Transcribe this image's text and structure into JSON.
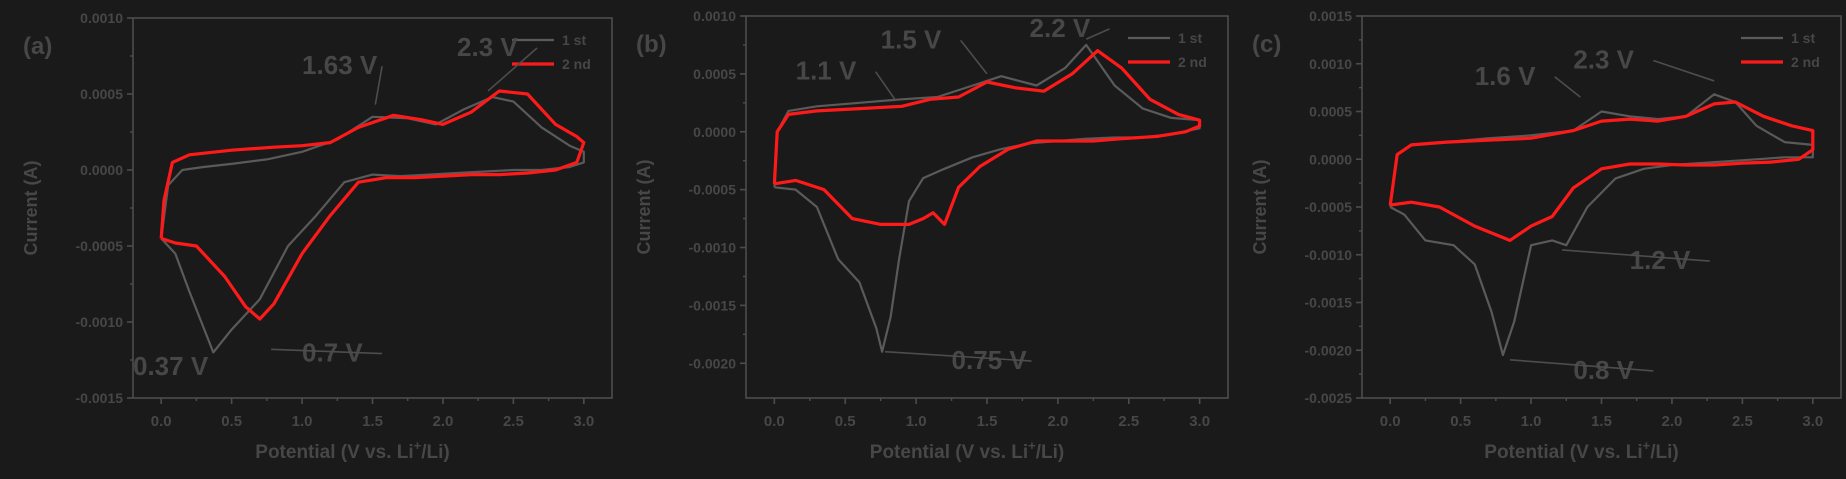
{
  "colors": {
    "background": "#1a1a1a",
    "axis": "#4d4d4d",
    "text": "#474747",
    "series_1st": "#5a5a5a",
    "series_2nd": "#ff1a1a"
  },
  "chart_data": [
    {
      "type": "line",
      "panel_label": "(a)",
      "xlabel_parts": [
        "Potential (V vs. Li",
        "+",
        "/Li)"
      ],
      "ylabel": "Current (A)",
      "xlim": [
        -0.2,
        3.2
      ],
      "ylim": [
        -0.0015,
        0.001
      ],
      "xticks": [
        0.0,
        0.5,
        1.0,
        1.5,
        2.0,
        2.5,
        3.0
      ],
      "xtick_labels": [
        "0.0",
        "0.5",
        "1.0",
        "1.5",
        "2.0",
        "2.5",
        "3.0"
      ],
      "yticks": [
        0.001,
        0.0005,
        0.0,
        -0.0005,
        -0.001,
        -0.0015
      ],
      "ytick_labels": [
        "0.0010",
        "0.0005",
        "0.0000",
        "-0.0005",
        "-0.0010",
        "-0.0015"
      ],
      "legend": [
        "1 st",
        "2 nd"
      ],
      "legend_position": "top-right",
      "series": [
        {
          "name": "1 st",
          "x": [
            0.0,
            0.1,
            0.2,
            0.37,
            0.5,
            0.7,
            0.9,
            1.1,
            1.3,
            1.5,
            1.7,
            1.9,
            2.1,
            2.3,
            2.5,
            2.7,
            2.9,
            3.0,
            3.0,
            2.9,
            2.7,
            2.5,
            2.35,
            2.15,
            1.95,
            1.75,
            1.5,
            1.25,
            1.0,
            0.75,
            0.5,
            0.3,
            0.15,
            0.05,
            0.0
          ],
          "y": [
            -0.00045,
            -0.00055,
            -0.0008,
            -0.0012,
            -0.00105,
            -0.00085,
            -0.0005,
            -0.0003,
            -8e-05,
            -3e-05,
            -4e-05,
            -3e-05,
            -2e-05,
            -1e-05,
            0.0,
            0.0,
            2e-05,
            5e-05,
            0.00012,
            0.00016,
            0.00028,
            0.00045,
            0.00048,
            0.0004,
            0.0003,
            0.00034,
            0.00035,
            0.0002,
            0.00012,
            7e-05,
            4e-05,
            2e-05,
            0.0,
            -0.0001,
            -0.00045
          ]
        },
        {
          "name": "2 nd",
          "x": [
            0.0,
            0.1,
            0.25,
            0.45,
            0.6,
            0.7,
            0.8,
            1.0,
            1.2,
            1.4,
            1.6,
            1.8,
            2.0,
            2.2,
            2.4,
            2.6,
            2.8,
            2.95,
            3.0,
            2.95,
            2.8,
            2.6,
            2.4,
            2.2,
            2.0,
            1.85,
            1.65,
            1.4,
            1.2,
            1.0,
            0.8,
            0.5,
            0.2,
            0.08,
            0.02,
            0.0
          ],
          "y": [
            -0.00045,
            -0.00048,
            -0.0005,
            -0.0007,
            -0.0009,
            -0.00098,
            -0.00088,
            -0.00055,
            -0.0003,
            -8e-05,
            -5e-05,
            -5e-05,
            -4e-05,
            -3e-05,
            -3e-05,
            -2e-05,
            0.0,
            5e-05,
            0.00018,
            0.00022,
            0.0003,
            0.0005,
            0.00052,
            0.00038,
            0.0003,
            0.00033,
            0.00036,
            0.00028,
            0.00018,
            0.00016,
            0.00015,
            0.00013,
            0.0001,
            5e-05,
            -0.0002,
            -0.00045
          ]
        }
      ],
      "annotations": [
        {
          "text": "2.3 V",
          "x": 2.1,
          "y": 0.00075,
          "ax": 2.32,
          "ay": 0.00052
        },
        {
          "text": "1.63 V",
          "x": 1.0,
          "y": 0.00063,
          "ax": 1.52,
          "ay": 0.00043
        },
        {
          "text": "0.37 V",
          "x": -0.2,
          "y": -0.00135,
          "ax": null,
          "ay": null
        },
        {
          "text": "0.7 V",
          "x": 1.0,
          "y": -0.00126,
          "ax": 0.78,
          "ay": -0.00118
        }
      ]
    },
    {
      "type": "line",
      "panel_label": "(b)",
      "xlabel_parts": [
        "Potential (V vs. Li",
        "+",
        "/Li)"
      ],
      "ylabel": "Current (A)",
      "xlim": [
        -0.2,
        3.2
      ],
      "ylim": [
        -0.0023,
        0.001
      ],
      "xticks": [
        0.0,
        0.5,
        1.0,
        1.5,
        2.0,
        2.5,
        3.0
      ],
      "xtick_labels": [
        "0.0",
        "0.5",
        "1.0",
        "1.5",
        "2.0",
        "2.5",
        "3.0"
      ],
      "yticks": [
        0.001,
        0.0005,
        0.0,
        -0.0005,
        -0.001,
        -0.0015,
        -0.002
      ],
      "ytick_labels": [
        "0.0010",
        "0.0005",
        "0.0000",
        "-0.0005",
        "-0.0010",
        "-0.0015",
        "-0.0020"
      ],
      "legend": [
        "1 st",
        "2 nd"
      ],
      "legend_position": "top-right",
      "series": [
        {
          "name": "1 st",
          "x": [
            0.0,
            0.15,
            0.3,
            0.45,
            0.6,
            0.72,
            0.76,
            0.82,
            0.88,
            0.95,
            1.05,
            1.2,
            1.4,
            1.6,
            1.8,
            2.0,
            2.2,
            2.4,
            2.6,
            2.8,
            3.0,
            3.0,
            2.8,
            2.6,
            2.4,
            2.2,
            2.05,
            1.85,
            1.6,
            1.4,
            1.15,
            0.9,
            0.6,
            0.3,
            0.1,
            0.02,
            0.0
          ],
          "y": [
            -0.00048,
            -0.0005,
            -0.00065,
            -0.0011,
            -0.0013,
            -0.0017,
            -0.0019,
            -0.0016,
            -0.0011,
            -0.0006,
            -0.0004,
            -0.00032,
            -0.00022,
            -0.00015,
            -0.0001,
            -8e-05,
            -6e-05,
            -5e-05,
            -5e-05,
            -2e-05,
            3e-05,
            0.0001,
            0.00012,
            0.0002,
            0.0004,
            0.00075,
            0.00055,
            0.0004,
            0.00048,
            0.0004,
            0.0003,
            0.00028,
            0.00025,
            0.00022,
            0.00018,
            0.0,
            -0.00048
          ]
        },
        {
          "name": "2 nd",
          "x": [
            0.0,
            0.15,
            0.35,
            0.55,
            0.75,
            0.95,
            1.05,
            1.12,
            1.2,
            1.3,
            1.45,
            1.65,
            1.85,
            2.05,
            2.25,
            2.45,
            2.7,
            2.9,
            3.0,
            3.0,
            2.85,
            2.65,
            2.45,
            2.28,
            2.1,
            1.9,
            1.7,
            1.5,
            1.3,
            1.1,
            0.9,
            0.6,
            0.3,
            0.1,
            0.02,
            0.0
          ],
          "y": [
            -0.00045,
            -0.00042,
            -0.0005,
            -0.00075,
            -0.0008,
            -0.0008,
            -0.00075,
            -0.0007,
            -0.0008,
            -0.00048,
            -0.0003,
            -0.00015,
            -8e-05,
            -8e-05,
            -8e-05,
            -6e-05,
            -4e-05,
            0.0,
            5e-05,
            0.0001,
            0.00015,
            0.00028,
            0.00055,
            0.0007,
            0.0005,
            0.00035,
            0.00038,
            0.00043,
            0.0003,
            0.00028,
            0.00022,
            0.0002,
            0.00018,
            0.00015,
            0.0,
            -0.00045
          ]
        }
      ],
      "annotations": [
        {
          "text": "2.2 V",
          "x": 1.8,
          "y": 0.00082,
          "ax": 2.2,
          "ay": 0.0008
        },
        {
          "text": "1.5 V",
          "x": 0.75,
          "y": 0.00072,
          "ax": 1.5,
          "ay": 0.0005
        },
        {
          "text": "1.1 V",
          "x": 0.15,
          "y": 0.00045,
          "ax": 0.85,
          "ay": 0.00028
        },
        {
          "text": "0.75 V",
          "x": 1.25,
          "y": -0.00205,
          "ax": 0.78,
          "ay": -0.0019
        }
      ]
    },
    {
      "type": "line",
      "panel_label": "(c)",
      "xlabel_parts": [
        "Potential (V vs. Li",
        "+",
        "/Li)"
      ],
      "ylabel": "Current (A)",
      "xlim": [
        -0.2,
        3.2
      ],
      "ylim": [
        -0.0025,
        0.0015
      ],
      "xticks": [
        0.0,
        0.5,
        1.0,
        1.5,
        2.0,
        2.5,
        3.0
      ],
      "xtick_labels": [
        "0.0",
        "0.5",
        "1.0",
        "1.5",
        "2.0",
        "2.5",
        "3.0"
      ],
      "yticks": [
        0.0015,
        0.001,
        0.0005,
        0.0,
        -0.0005,
        -0.001,
        -0.0015,
        -0.002,
        -0.0025
      ],
      "ytick_labels": [
        "0.0015",
        "0.0010",
        "0.0005",
        "0.0000",
        "-0.0005",
        "-0.0010",
        "-0.0015",
        "-0.0020",
        "-0.0025"
      ],
      "legend": [
        "1 st",
        "2 nd"
      ],
      "legend_position": "top-right",
      "series": [
        {
          "name": "1 st",
          "x": [
            0.0,
            0.1,
            0.25,
            0.45,
            0.6,
            0.72,
            0.8,
            0.88,
            1.0,
            1.15,
            1.25,
            1.4,
            1.6,
            1.8,
            2.0,
            2.2,
            2.4,
            2.6,
            2.8,
            3.0,
            3.0,
            2.8,
            2.6,
            2.45,
            2.3,
            2.1,
            1.9,
            1.7,
            1.5,
            1.3,
            1.0,
            0.7,
            0.4,
            0.15,
            0.05,
            0.0
          ],
          "y": [
            -0.0005,
            -0.00058,
            -0.00085,
            -0.0009,
            -0.0011,
            -0.0016,
            -0.00205,
            -0.0017,
            -0.0009,
            -0.00085,
            -0.0009,
            -0.0005,
            -0.0002,
            -0.0001,
            -6e-05,
            -4e-05,
            -2e-05,
            0.0,
            2e-05,
            2e-05,
            0.00015,
            0.00018,
            0.00035,
            0.0006,
            0.00068,
            0.00045,
            0.00042,
            0.00045,
            0.0005,
            0.0003,
            0.00025,
            0.00022,
            0.00018,
            0.00015,
            5e-05,
            -0.0005
          ]
        },
        {
          "name": "2 nd",
          "x": [
            0.0,
            0.15,
            0.35,
            0.6,
            0.85,
            1.0,
            1.15,
            1.3,
            1.5,
            1.7,
            1.9,
            2.1,
            2.3,
            2.5,
            2.7,
            2.9,
            3.0,
            3.0,
            2.85,
            2.65,
            2.45,
            2.3,
            2.1,
            1.9,
            1.7,
            1.5,
            1.3,
            1.0,
            0.7,
            0.4,
            0.15,
            0.05,
            0.0
          ],
          "y": [
            -0.00048,
            -0.00045,
            -0.0005,
            -0.0007,
            -0.00085,
            -0.0007,
            -0.0006,
            -0.0003,
            -0.0001,
            -5e-05,
            -5e-05,
            -6e-05,
            -6e-05,
            -4e-05,
            -3e-05,
            0.0,
            0.0001,
            0.0003,
            0.00035,
            0.00045,
            0.0006,
            0.00058,
            0.00045,
            0.0004,
            0.00042,
            0.0004,
            0.0003,
            0.00022,
            0.0002,
            0.00018,
            0.00015,
            5e-05,
            -0.00048
          ]
        }
      ],
      "annotations": [
        {
          "text": "2.3 V",
          "x": 1.3,
          "y": 0.00095,
          "ax": 2.3,
          "ay": 0.00082
        },
        {
          "text": "1.6 V",
          "x": 0.6,
          "y": 0.00078,
          "ax": 1.35,
          "ay": 0.00065
        },
        {
          "text": "1.2 V",
          "x": 1.7,
          "y": -0.00115,
          "ax": 1.22,
          "ay": -0.00095
        },
        {
          "text": "0.8 V",
          "x": 1.3,
          "y": -0.0023,
          "ax": 0.85,
          "ay": -0.0021
        }
      ]
    }
  ]
}
